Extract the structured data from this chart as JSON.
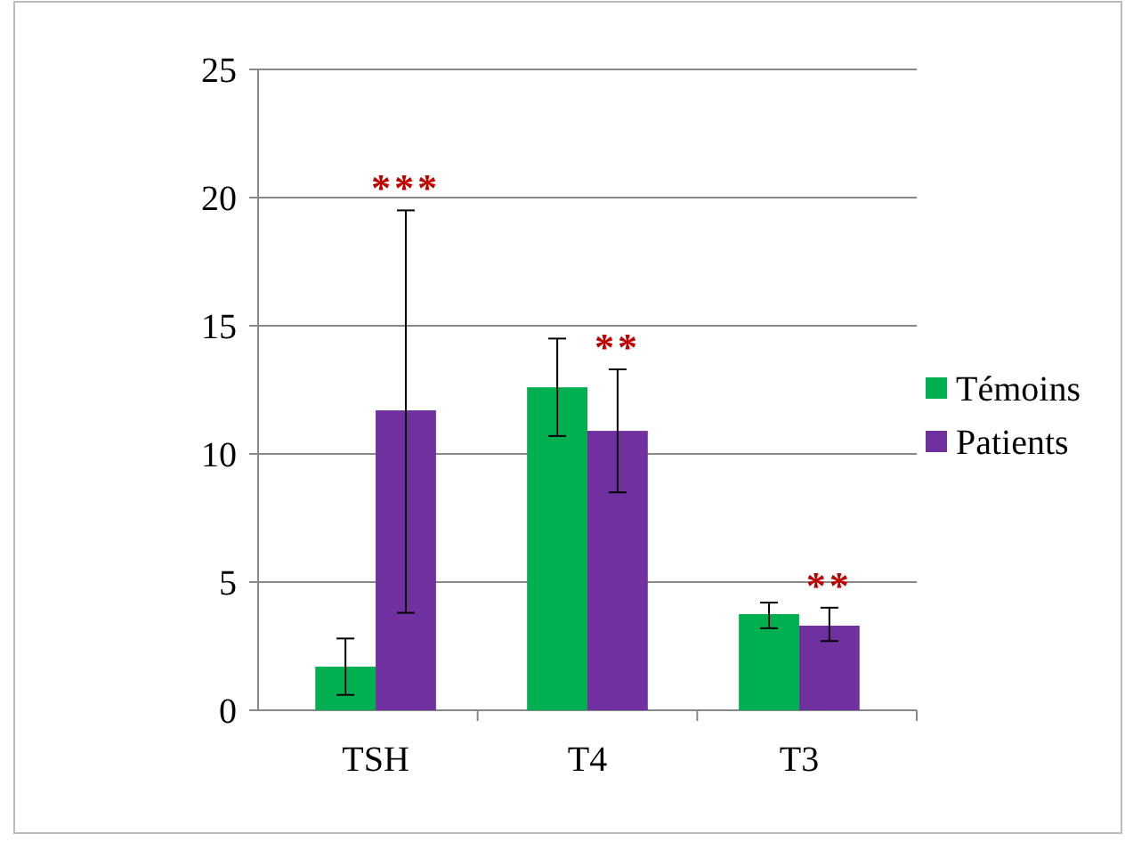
{
  "chart_data": {
    "type": "bar",
    "categories": [
      "TSH",
      "T4",
      "T3"
    ],
    "series": [
      {
        "name": "Témoins",
        "color": "#00b050",
        "values": [
          1.7,
          12.6,
          3.75
        ],
        "errors": [
          [
            0.6,
            2.8
          ],
          [
            10.7,
            14.5
          ],
          [
            3.2,
            4.2
          ]
        ]
      },
      {
        "name": "Patients",
        "color": "#7030a0",
        "values": [
          11.7,
          10.9,
          3.3
        ],
        "errors": [
          [
            3.8,
            19.5
          ],
          [
            8.5,
            13.3
          ],
          [
            2.7,
            4.0
          ]
        ]
      }
    ],
    "ylim": [
      0,
      25
    ],
    "yticks": [
      0,
      5,
      10,
      15,
      20,
      25
    ],
    "grid": "y",
    "legend": "right",
    "annotations": [
      "***",
      "**",
      "**"
    ]
  }
}
